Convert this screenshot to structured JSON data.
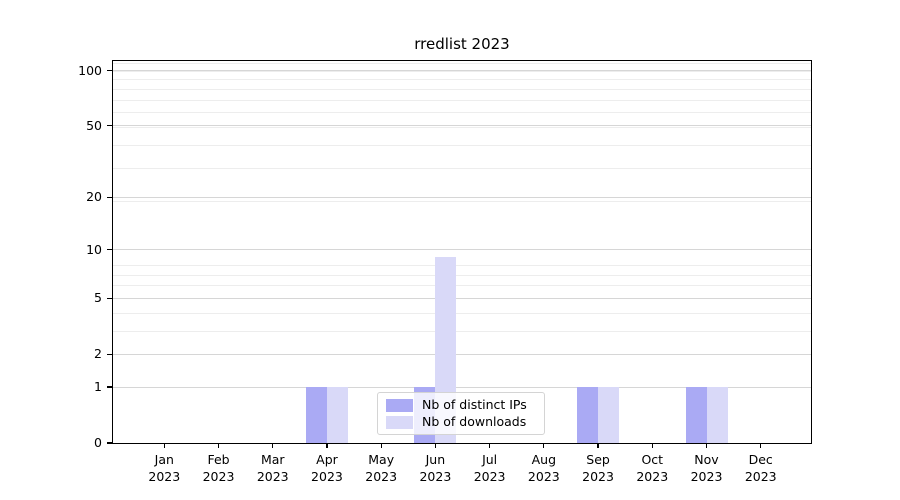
{
  "title": "rredlist 2023",
  "chart_data": {
    "type": "bar",
    "title": "rredlist 2023",
    "categories": [
      "Jan",
      "Feb",
      "Mar",
      "Apr",
      "May",
      "Jun",
      "Jul",
      "Aug",
      "Sep",
      "Oct",
      "Nov",
      "Dec"
    ],
    "year_label": "2023",
    "series": [
      {
        "name": "Nb of distinct IPs",
        "color": "#aaaaf4",
        "values": [
          0,
          0,
          0,
          1,
          0,
          1,
          0,
          0,
          1,
          0,
          1,
          0
        ]
      },
      {
        "name": "Nb of downloads",
        "color": "#d9d9f8",
        "values": [
          0,
          0,
          0,
          1,
          0,
          9,
          0,
          0,
          1,
          0,
          1,
          0
        ]
      }
    ],
    "yticks": [
      0,
      1,
      2,
      5,
      10,
      20,
      50,
      100
    ],
    "yscale": "log1p",
    "ylim": [
      0,
      113
    ],
    "xlabel": "",
    "ylabel": "",
    "grid": true,
    "legend_position": "lower center"
  },
  "colors": {
    "background": "#ffffff",
    "spine": "#000000",
    "grid_major": "rgba(0,0,0,0.16)",
    "grid_minor": "rgba(0,0,0,0.07)",
    "legend_border": "#d4d4d4",
    "legend_background": "rgba(255,255,255,0.8)"
  }
}
